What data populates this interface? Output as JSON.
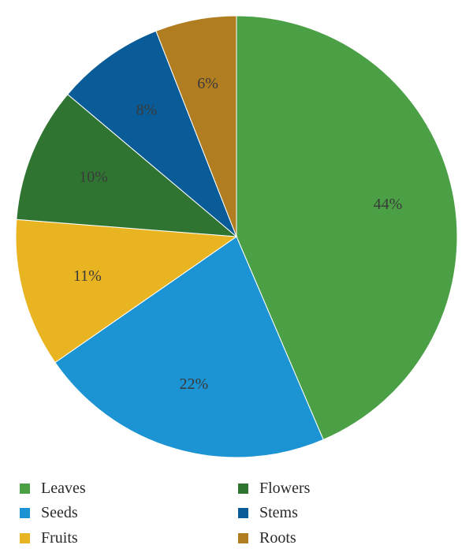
{
  "chart_data": {
    "type": "pie",
    "start_angle_deg": 0,
    "direction": "clockwise",
    "slices": [
      {
        "label": "Leaves",
        "value": 44,
        "display": "44%",
        "color": "#4ba046"
      },
      {
        "label": "Seeds",
        "value": 22,
        "display": "22%",
        "color": "#1c93d2"
      },
      {
        "label": "Fruits",
        "value": 11,
        "display": "11%",
        "color": "#e9b421"
      },
      {
        "label": "Flowers",
        "value": 10,
        "display": "10%",
        "color": "#2f7531"
      },
      {
        "label": "Stems",
        "value": 8,
        "display": "8%",
        "color": "#0a5c98"
      },
      {
        "label": "Roots",
        "value": 6,
        "display": "6%",
        "color": "#b17d21"
      }
    ],
    "legend_position": "bottom",
    "legend": [
      {
        "label": "Leaves",
        "color": "#4ba046"
      },
      {
        "label": "Flowers",
        "color": "#2f7531"
      },
      {
        "label": "Seeds",
        "color": "#1c93d2"
      },
      {
        "label": "Stems",
        "color": "#0a5c98"
      },
      {
        "label": "Fruits",
        "color": "#e9b421"
      },
      {
        "label": "Roots",
        "color": "#b17d21"
      }
    ]
  }
}
